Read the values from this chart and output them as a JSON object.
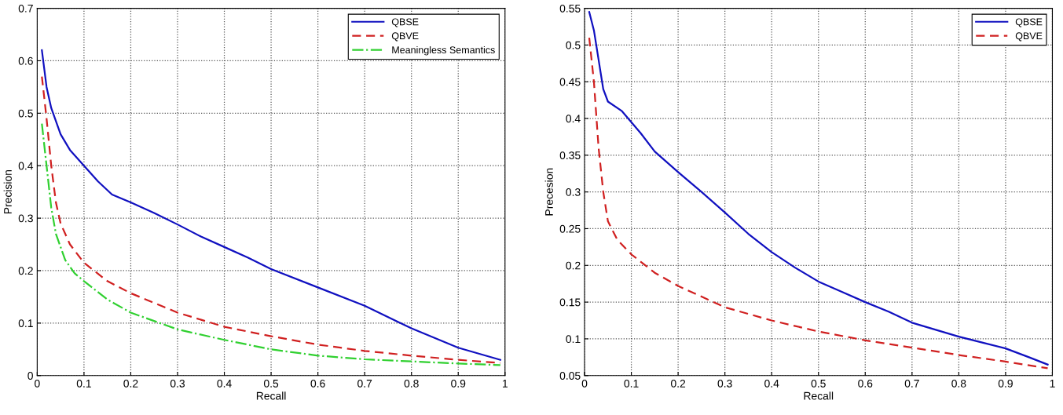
{
  "chart_data": [
    {
      "type": "line",
      "xlabel": "Recall",
      "ylabel": "Precision",
      "xlim": [
        0,
        1
      ],
      "ylim": [
        0,
        0.7
      ],
      "xticks": [
        0,
        0.1,
        0.2,
        0.3,
        0.4,
        0.5,
        0.6,
        0.7,
        0.8,
        0.9,
        1
      ],
      "yticks": [
        0,
        0.1,
        0.2,
        0.3,
        0.4,
        0.5,
        0.6,
        0.7
      ],
      "grid": true,
      "legend": "top right",
      "marker": "none",
      "series": [
        {
          "name": "QBSE",
          "color": "#1010c0",
          "line_style": "solid",
          "x": [
            0.01,
            0.02,
            0.03,
            0.05,
            0.07,
            0.1,
            0.13,
            0.16,
            0.2,
            0.25,
            0.3,
            0.35,
            0.4,
            0.45,
            0.5,
            0.6,
            0.7,
            0.8,
            0.9,
            0.99
          ],
          "values": [
            0.62,
            0.55,
            0.51,
            0.46,
            0.43,
            0.4,
            0.37,
            0.345,
            0.33,
            0.31,
            0.288,
            0.265,
            0.245,
            0.225,
            0.203,
            0.168,
            0.133,
            0.09,
            0.053,
            0.03
          ]
        },
        {
          "name": "QBVE",
          "color": "#d02020",
          "line_style": "dashed",
          "x": [
            0.01,
            0.02,
            0.03,
            0.04,
            0.05,
            0.07,
            0.1,
            0.15,
            0.2,
            0.3,
            0.4,
            0.5,
            0.6,
            0.7,
            0.8,
            0.9,
            0.99
          ],
          "values": [
            0.57,
            0.49,
            0.4,
            0.33,
            0.29,
            0.25,
            0.215,
            0.18,
            0.157,
            0.12,
            0.093,
            0.075,
            0.059,
            0.047,
            0.038,
            0.03,
            0.024
          ]
        },
        {
          "name": "Meaningless Semantics",
          "color": "#30d030",
          "line_style": "dashdot",
          "x": [
            0.01,
            0.02,
            0.03,
            0.04,
            0.06,
            0.08,
            0.1,
            0.15,
            0.2,
            0.3,
            0.4,
            0.5,
            0.6,
            0.7,
            0.8,
            0.9,
            0.99
          ],
          "values": [
            0.48,
            0.4,
            0.32,
            0.27,
            0.22,
            0.195,
            0.18,
            0.145,
            0.12,
            0.088,
            0.068,
            0.05,
            0.038,
            0.031,
            0.027,
            0.023,
            0.02
          ]
        }
      ]
    },
    {
      "type": "line",
      "xlabel": "Recall",
      "ylabel": "Precesion",
      "xlim": [
        0,
        1
      ],
      "ylim": [
        0.05,
        0.55
      ],
      "xticks": [
        0,
        0.1,
        0.2,
        0.3,
        0.4,
        0.5,
        0.6,
        0.7,
        0.8,
        0.9,
        1
      ],
      "yticks": [
        0.05,
        0.1,
        0.15,
        0.2,
        0.25,
        0.3,
        0.35,
        0.4,
        0.45,
        0.5,
        0.55
      ],
      "grid": true,
      "legend": "top right",
      "marker": "none",
      "series": [
        {
          "name": "QBSE",
          "color": "#1010c0",
          "line_style": "solid",
          "x": [
            0.01,
            0.02,
            0.03,
            0.04,
            0.05,
            0.08,
            0.1,
            0.12,
            0.15,
            0.2,
            0.25,
            0.3,
            0.35,
            0.4,
            0.45,
            0.5,
            0.55,
            0.6,
            0.65,
            0.7,
            0.8,
            0.85,
            0.9,
            0.95,
            0.99
          ],
          "values": [
            0.545,
            0.52,
            0.48,
            0.44,
            0.423,
            0.41,
            0.395,
            0.38,
            0.355,
            0.327,
            0.3,
            0.272,
            0.243,
            0.218,
            0.197,
            0.178,
            0.164,
            0.15,
            0.137,
            0.122,
            0.103,
            0.095,
            0.087,
            0.075,
            0.065
          ]
        },
        {
          "name": "QBVE",
          "color": "#d02020",
          "line_style": "dashed",
          "x": [
            0.01,
            0.02,
            0.03,
            0.04,
            0.05,
            0.07,
            0.1,
            0.15,
            0.2,
            0.3,
            0.4,
            0.5,
            0.6,
            0.7,
            0.8,
            0.9,
            0.99
          ],
          "values": [
            0.51,
            0.45,
            0.36,
            0.3,
            0.26,
            0.235,
            0.215,
            0.19,
            0.172,
            0.143,
            0.125,
            0.11,
            0.098,
            0.088,
            0.078,
            0.069,
            0.06
          ]
        }
      ]
    }
  ]
}
